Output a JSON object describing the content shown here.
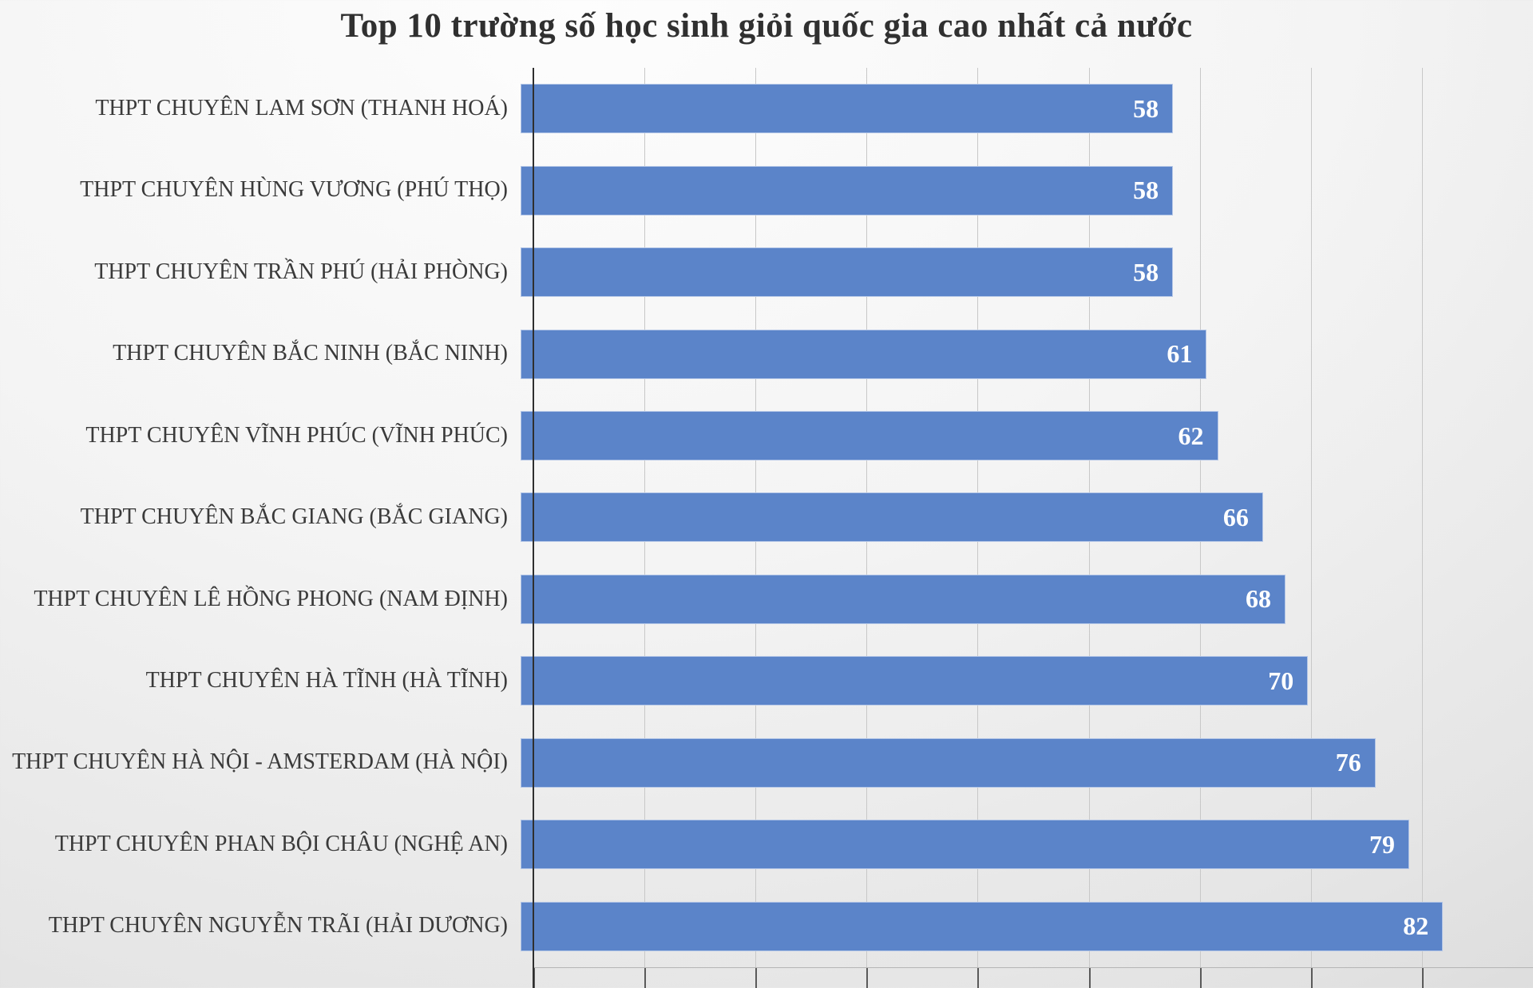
{
  "chart_data": {
    "type": "bar",
    "orientation": "horizontal",
    "title": "Top 10 trường số học sinh giỏi quốc gia cao nhất cả nước",
    "categories": [
      "THPT CHUYÊN LAM SƠN (THANH HOÁ)",
      "THPT CHUYÊN HÙNG VƯƠNG (PHÚ THỌ)",
      "THPT CHUYÊN TRẦN PHÚ (HẢI PHÒNG)",
      "THPT CHUYÊN BẮC NINH (BẮC NINH)",
      "THPT CHUYÊN VĨNH PHÚC (VĨNH PHÚC)",
      "THPT CHUYÊN BẮC GIANG (BẮC GIANG)",
      "THPT CHUYÊN LÊ HỒNG PHONG (NAM ĐỊNH)",
      "THPT CHUYÊN HÀ TĨNH (HÀ TĨNH)",
      "THPT CHUYÊN HÀ NỘI - AMSTERDAM (HÀ NỘI)",
      "THPT CHUYÊN PHAN BỘI CHÂU (NGHỆ AN)",
      "THPT CHUYÊN NGUYỄN TRÃI (HẢI DƯƠNG)"
    ],
    "values": [
      58,
      58,
      58,
      61,
      62,
      66,
      68,
      70,
      76,
      79,
      82
    ],
    "xlabel": "",
    "ylabel": "",
    "xlim": [
      0,
      90
    ],
    "gridline_step": 10,
    "grid": true,
    "legend": false,
    "value_label_position": "inside-end",
    "colors": {
      "bar": "#5B84C9",
      "value_label": "#FFFFFF",
      "category_label": "#3A3A3A",
      "title": "#303030",
      "gridline": "#C8C8C8",
      "axis": "#2F2F2F"
    }
  }
}
